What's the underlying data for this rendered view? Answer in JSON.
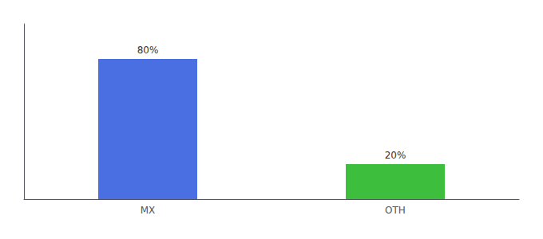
{
  "chart_data": {
    "type": "bar",
    "categories": [
      "MX",
      "OTH"
    ],
    "values": [
      80,
      20
    ],
    "colors": [
      "#4A6FE3",
      "#3DBE3D"
    ],
    "value_labels": [
      "80%",
      "20%"
    ],
    "data_labels": true,
    "ylim": [
      0,
      100
    ],
    "tick_labels": "x",
    "grid": false
  }
}
